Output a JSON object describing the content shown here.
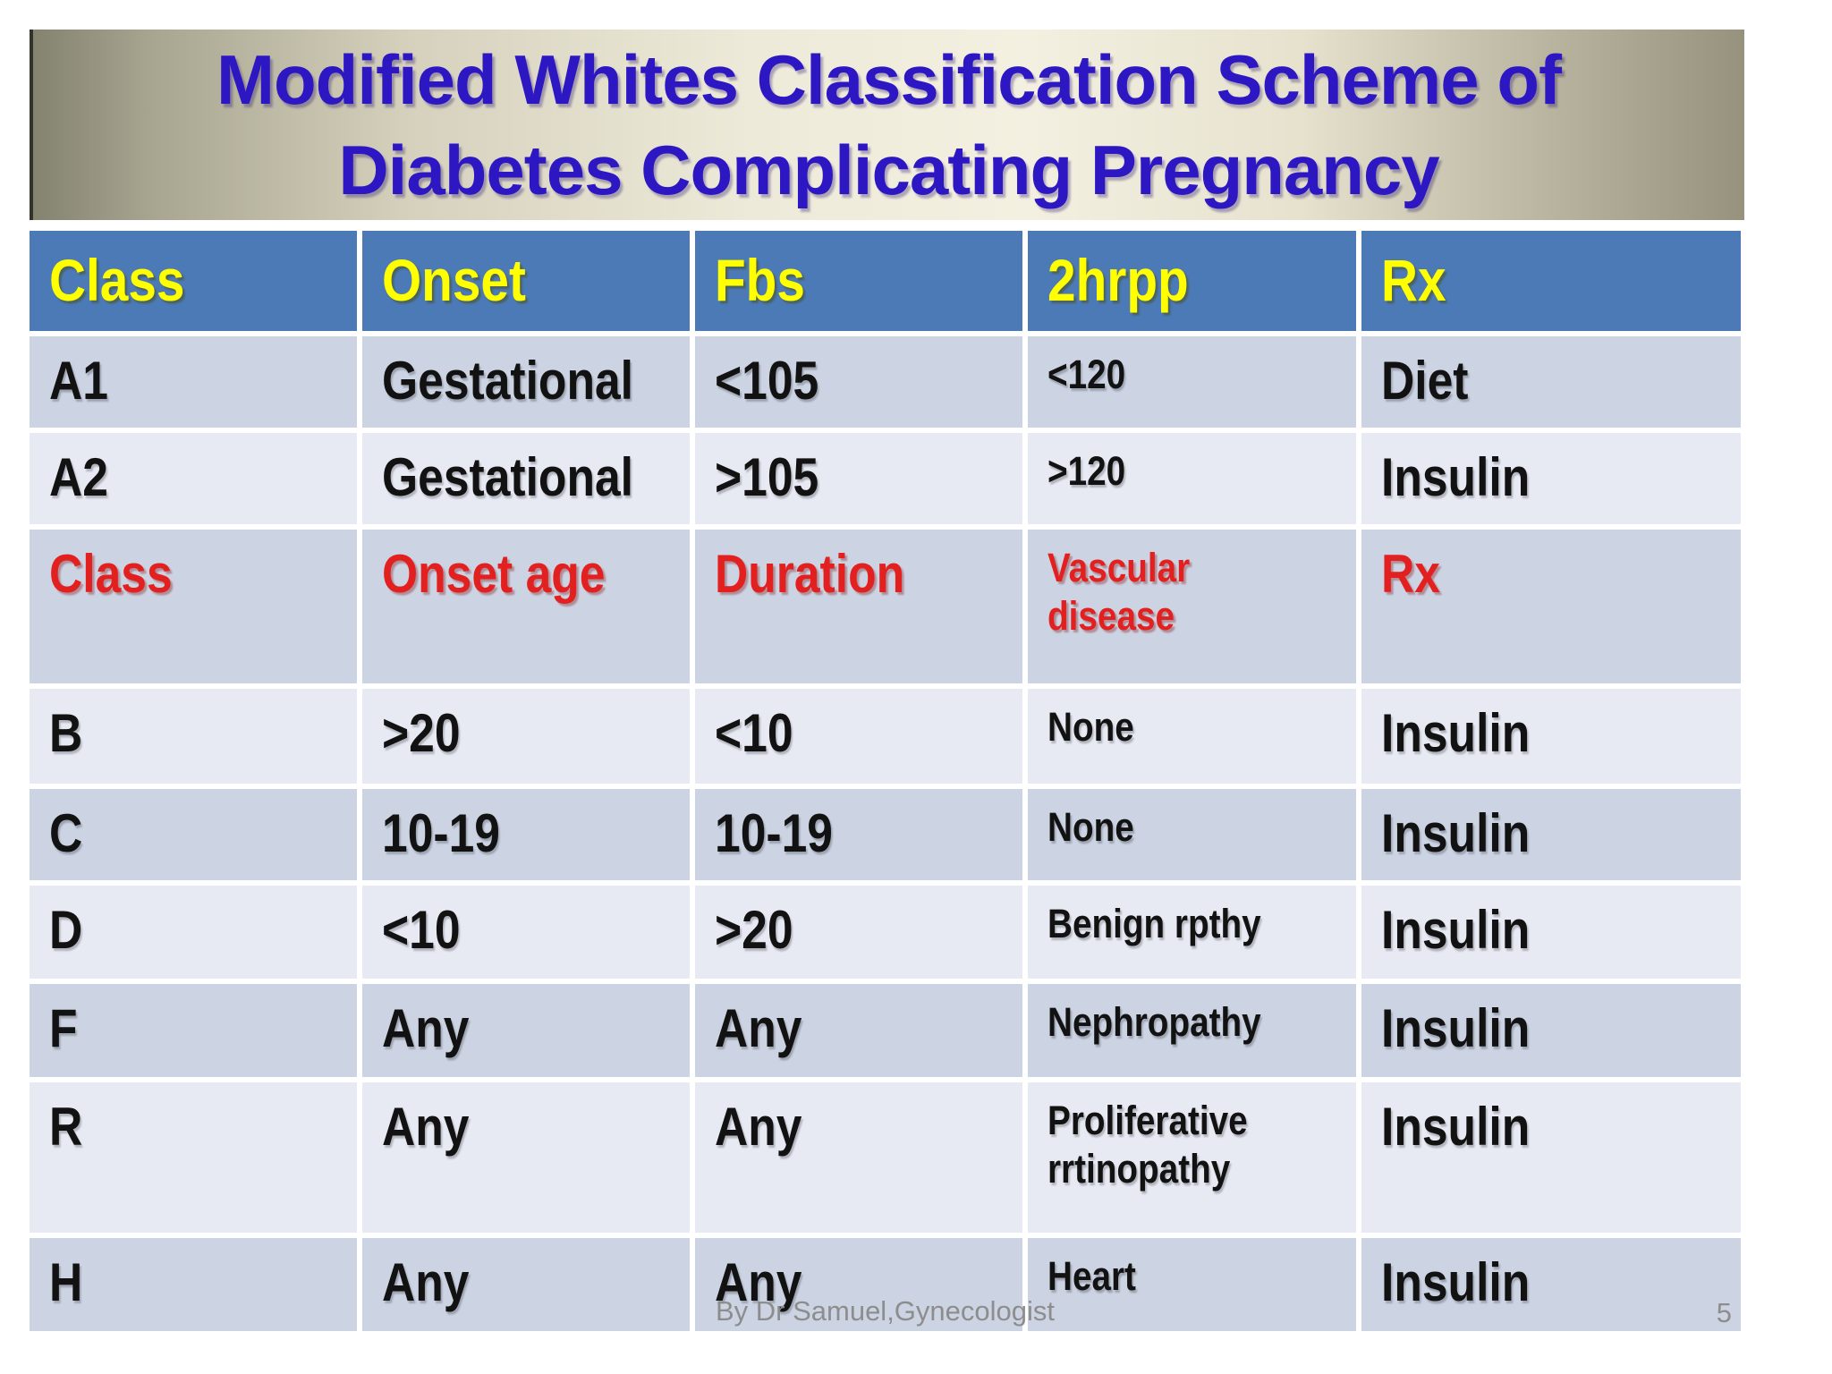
{
  "slide": {
    "title_line1": "Modified Whites Classification Scheme of",
    "title_line2": "Diabetes Complicating Pregnancy",
    "footer_credit": "By Dr Samuel,Gynecologist",
    "page_number": "5"
  },
  "colors": {
    "title_text": "#2d17c3",
    "banner_edge": "#84836f",
    "banner_center": "#f4f0e1",
    "header_bg": "#4b7ab6",
    "header_text": "#ffff00",
    "band_dark": "#ccd4e3",
    "band_light": "#e7eaf2",
    "red_text": "#e2201f",
    "body_text": "#121212",
    "footer_text": "#8d8d8d"
  },
  "table": {
    "columns": [
      "Class",
      "Onset",
      "Fbs",
      "2hrpp",
      "Rx"
    ],
    "rows": [
      {
        "band": "dark",
        "red": false,
        "cells": [
          {
            "t": "A1"
          },
          {
            "t": "Gestational"
          },
          {
            "t": "<105"
          },
          {
            "t": "<120",
            "small": true
          },
          {
            "t": "Diet"
          }
        ]
      },
      {
        "band": "light",
        "red": false,
        "cells": [
          {
            "t": "A2"
          },
          {
            "t": "Gestational"
          },
          {
            "t": ">105"
          },
          {
            "t": ">120",
            "small": true
          },
          {
            "t": "Insulin"
          }
        ]
      },
      {
        "band": "dark",
        "red": true,
        "cells": [
          {
            "t": "Class"
          },
          {
            "t": "Onset age"
          },
          {
            "t": "Duration"
          },
          {
            "t": "Vascular\ndisease",
            "small": true
          },
          {
            "t": "Rx"
          }
        ]
      },
      {
        "band": "light",
        "red": false,
        "cells": [
          {
            "t": "B"
          },
          {
            "t": ">20"
          },
          {
            "t": "<10"
          },
          {
            "t": "None",
            "small": true
          },
          {
            "t": "Insulin"
          }
        ]
      },
      {
        "band": "dark",
        "red": false,
        "cells": [
          {
            "t": "C"
          },
          {
            "t": "10-19"
          },
          {
            "t": "10-19"
          },
          {
            "t": "None",
            "small": true
          },
          {
            "t": "Insulin"
          }
        ]
      },
      {
        "band": "light",
        "red": false,
        "cells": [
          {
            "t": "D"
          },
          {
            "t": "<10"
          },
          {
            "t": ">20"
          },
          {
            "t": "Benign rpthy",
            "small": true
          },
          {
            "t": "Insulin"
          }
        ]
      },
      {
        "band": "dark",
        "red": false,
        "cells": [
          {
            "t": "F"
          },
          {
            "t": "Any"
          },
          {
            "t": "Any"
          },
          {
            "t": "Nephropathy",
            "small": true
          },
          {
            "t": "Insulin"
          }
        ]
      },
      {
        "band": "light",
        "red": false,
        "cells": [
          {
            "t": "R"
          },
          {
            "t": "Any"
          },
          {
            "t": "Any"
          },
          {
            "t": "Proliferative\nrrtinopathy",
            "small": true
          },
          {
            "t": "Insulin"
          }
        ]
      },
      {
        "band": "dark",
        "red": false,
        "cells": [
          {
            "t": "H"
          },
          {
            "t": "Any"
          },
          {
            "t": "Any"
          },
          {
            "t": "Heart",
            "small": true
          },
          {
            "t": "Insulin"
          }
        ]
      }
    ]
  }
}
